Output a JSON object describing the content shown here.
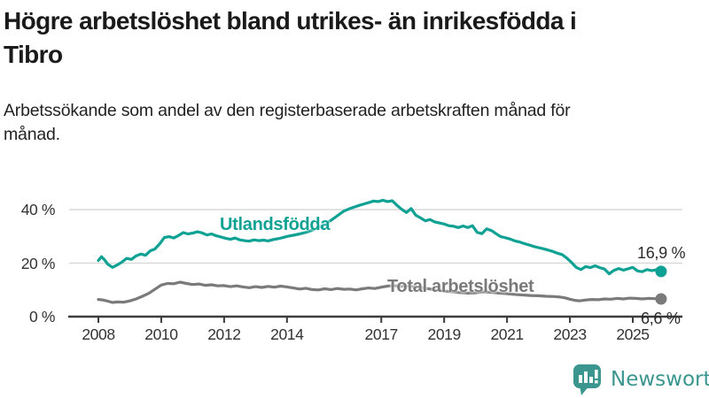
{
  "header": {
    "title": "Högre arbetslöshet bland utrikes- än inrikesfödda i Tibro",
    "subtitle": "Arbetssökande som andel av den registerbaserade arbetskraften månad för månad."
  },
  "footer": {
    "brand": "Newsworthy"
  },
  "colors": {
    "accent_teal": "#0fa294",
    "line_gray": "#7a7a7a",
    "grid": "#d9d9d9",
    "axis": "#3c3c3c",
    "value_label_text": "#2b2b2b",
    "logo_teal": "#3a968e"
  },
  "chart_data": {
    "type": "line",
    "title": "Högre arbetslöshet bland utrikes- än inrikesfödda i Tibro",
    "subtitle": "Arbetssökande som andel av den registerbaserade arbetskraften månad för månad.",
    "xlabel": "",
    "ylabel": "",
    "unit": "%",
    "grid": "horizontal",
    "legend_position": "inline-labels",
    "xlim": [
      2007.1,
      2026.6
    ],
    "ylim": [
      0,
      45
    ],
    "x_ticks": [
      {
        "value": 2008,
        "label": "2008"
      },
      {
        "value": 2010,
        "label": "2010"
      },
      {
        "value": 2012,
        "label": "2012"
      },
      {
        "value": 2014,
        "label": "2014"
      },
      {
        "value": 2017,
        "label": "2017"
      },
      {
        "value": 2019,
        "label": "2019"
      },
      {
        "value": 2021,
        "label": "2021"
      },
      {
        "value": 2023,
        "label": "2023"
      },
      {
        "value": 2025,
        "label": "2025"
      }
    ],
    "y_ticks": [
      {
        "value": 0,
        "label": "0 %"
      },
      {
        "value": 20,
        "label": "20 %"
      },
      {
        "value": 40,
        "label": "40 %"
      }
    ],
    "series": [
      {
        "name": "Utlandsfödda",
        "color": "#0fa294",
        "end_value": 16.9,
        "end_value_label": "16,9 %",
        "points": [
          [
            2008.0,
            21.0
          ],
          [
            2008.1,
            22.4
          ],
          [
            2008.2,
            21.2
          ],
          [
            2008.3,
            19.6
          ],
          [
            2008.45,
            18.4
          ],
          [
            2008.6,
            19.3
          ],
          [
            2008.75,
            20.4
          ],
          [
            2008.9,
            21.8
          ],
          [
            2009.05,
            21.4
          ],
          [
            2009.2,
            22.7
          ],
          [
            2009.35,
            23.4
          ],
          [
            2009.5,
            22.9
          ],
          [
            2009.65,
            24.6
          ],
          [
            2009.8,
            25.3
          ],
          [
            2009.95,
            27.2
          ],
          [
            2010.1,
            29.6
          ],
          [
            2010.25,
            29.9
          ],
          [
            2010.4,
            29.4
          ],
          [
            2010.55,
            30.3
          ],
          [
            2010.7,
            31.4
          ],
          [
            2010.85,
            30.9
          ],
          [
            2011.0,
            31.2
          ],
          [
            2011.15,
            31.7
          ],
          [
            2011.3,
            31.3
          ],
          [
            2011.45,
            30.5
          ],
          [
            2011.6,
            30.9
          ],
          [
            2011.75,
            30.2
          ],
          [
            2011.9,
            29.8
          ],
          [
            2012.05,
            29.3
          ],
          [
            2012.2,
            28.9
          ],
          [
            2012.35,
            29.4
          ],
          [
            2012.5,
            28.7
          ],
          [
            2012.65,
            28.4
          ],
          [
            2012.8,
            28.2
          ],
          [
            2012.95,
            28.7
          ],
          [
            2013.1,
            28.4
          ],
          [
            2013.25,
            28.6
          ],
          [
            2013.4,
            28.3
          ],
          [
            2013.55,
            28.8
          ],
          [
            2013.7,
            29.1
          ],
          [
            2013.85,
            29.5
          ],
          [
            2014.0,
            30.0
          ],
          [
            2014.2,
            30.4
          ],
          [
            2014.4,
            30.9
          ],
          [
            2014.6,
            31.5
          ],
          [
            2014.8,
            32.3
          ],
          [
            2015.0,
            33.3
          ],
          [
            2015.2,
            34.6
          ],
          [
            2015.4,
            36.0
          ],
          [
            2015.6,
            37.7
          ],
          [
            2015.8,
            39.4
          ],
          [
            2016.0,
            40.4
          ],
          [
            2016.15,
            41.0
          ],
          [
            2016.3,
            41.6
          ],
          [
            2016.45,
            42.1
          ],
          [
            2016.6,
            42.6
          ],
          [
            2016.75,
            43.2
          ],
          [
            2016.9,
            43.0
          ],
          [
            2017.05,
            43.5
          ],
          [
            2017.2,
            43.0
          ],
          [
            2017.35,
            43.3
          ],
          [
            2017.5,
            41.6
          ],
          [
            2017.65,
            40.1
          ],
          [
            2017.8,
            38.9
          ],
          [
            2017.95,
            40.4
          ],
          [
            2018.1,
            37.9
          ],
          [
            2018.25,
            36.9
          ],
          [
            2018.4,
            35.8
          ],
          [
            2018.55,
            36.3
          ],
          [
            2018.7,
            35.4
          ],
          [
            2018.85,
            35.0
          ],
          [
            2019.0,
            34.6
          ],
          [
            2019.15,
            34.0
          ],
          [
            2019.3,
            33.8
          ],
          [
            2019.45,
            33.3
          ],
          [
            2019.6,
            33.9
          ],
          [
            2019.75,
            33.3
          ],
          [
            2019.9,
            34.0
          ],
          [
            2020.05,
            31.5
          ],
          [
            2020.2,
            31.0
          ],
          [
            2020.35,
            32.8
          ],
          [
            2020.5,
            32.2
          ],
          [
            2020.65,
            31.0
          ],
          [
            2020.8,
            29.9
          ],
          [
            2020.95,
            29.5
          ],
          [
            2021.1,
            29.0
          ],
          [
            2021.25,
            28.3
          ],
          [
            2021.4,
            27.9
          ],
          [
            2021.55,
            27.3
          ],
          [
            2021.7,
            26.8
          ],
          [
            2021.85,
            26.2
          ],
          [
            2022.0,
            25.8
          ],
          [
            2022.15,
            25.4
          ],
          [
            2022.3,
            24.9
          ],
          [
            2022.45,
            24.4
          ],
          [
            2022.6,
            23.7
          ],
          [
            2022.75,
            23.2
          ],
          [
            2022.9,
            21.9
          ],
          [
            2023.05,
            20.3
          ],
          [
            2023.2,
            18.4
          ],
          [
            2023.35,
            17.6
          ],
          [
            2023.5,
            18.7
          ],
          [
            2023.65,
            18.3
          ],
          [
            2023.8,
            19.0
          ],
          [
            2023.95,
            18.3
          ],
          [
            2024.1,
            17.8
          ],
          [
            2024.25,
            16.0
          ],
          [
            2024.4,
            17.3
          ],
          [
            2024.55,
            18.0
          ],
          [
            2024.7,
            17.4
          ],
          [
            2024.85,
            17.9
          ],
          [
            2025.0,
            18.4
          ],
          [
            2025.15,
            17.1
          ],
          [
            2025.3,
            16.8
          ],
          [
            2025.45,
            17.6
          ],
          [
            2025.6,
            17.2
          ],
          [
            2025.75,
            17.5
          ],
          [
            2025.9,
            16.9
          ]
        ]
      },
      {
        "name": "Total arbetslöshet",
        "color": "#7a7a7a",
        "end_value": 6.6,
        "end_value_label": "6,6 %",
        "points": [
          [
            2008.0,
            6.4
          ],
          [
            2008.15,
            6.2
          ],
          [
            2008.3,
            5.8
          ],
          [
            2008.45,
            5.3
          ],
          [
            2008.6,
            5.5
          ],
          [
            2008.8,
            5.4
          ],
          [
            2009.0,
            5.9
          ],
          [
            2009.2,
            6.6
          ],
          [
            2009.4,
            7.6
          ],
          [
            2009.6,
            8.7
          ],
          [
            2009.8,
            10.2
          ],
          [
            2010.0,
            11.8
          ],
          [
            2010.2,
            12.4
          ],
          [
            2010.4,
            12.3
          ],
          [
            2010.6,
            12.9
          ],
          [
            2010.8,
            12.4
          ],
          [
            2011.0,
            12.0
          ],
          [
            2011.2,
            12.2
          ],
          [
            2011.4,
            11.7
          ],
          [
            2011.6,
            11.9
          ],
          [
            2011.8,
            11.5
          ],
          [
            2012.0,
            11.6
          ],
          [
            2012.2,
            11.2
          ],
          [
            2012.4,
            11.5
          ],
          [
            2012.6,
            11.1
          ],
          [
            2012.8,
            10.8
          ],
          [
            2013.0,
            11.2
          ],
          [
            2013.2,
            10.9
          ],
          [
            2013.4,
            11.3
          ],
          [
            2013.6,
            11.0
          ],
          [
            2013.8,
            11.4
          ],
          [
            2014.0,
            11.1
          ],
          [
            2014.2,
            10.7
          ],
          [
            2014.4,
            10.3
          ],
          [
            2014.6,
            10.6
          ],
          [
            2014.8,
            10.1
          ],
          [
            2015.0,
            10.0
          ],
          [
            2015.2,
            10.4
          ],
          [
            2015.4,
            10.1
          ],
          [
            2015.6,
            10.5
          ],
          [
            2015.8,
            10.2
          ],
          [
            2016.0,
            10.3
          ],
          [
            2016.2,
            10.0
          ],
          [
            2016.4,
            10.4
          ],
          [
            2016.6,
            10.7
          ],
          [
            2016.8,
            10.5
          ],
          [
            2017.0,
            11.0
          ],
          [
            2017.2,
            11.4
          ],
          [
            2017.4,
            11.6
          ],
          [
            2017.6,
            11.3
          ],
          [
            2017.8,
            11.5
          ],
          [
            2018.0,
            11.2
          ],
          [
            2018.25,
            10.8
          ],
          [
            2018.5,
            10.4
          ],
          [
            2018.75,
            10.0
          ],
          [
            2019.0,
            9.6
          ],
          [
            2019.25,
            9.3
          ],
          [
            2019.5,
            9.0
          ],
          [
            2019.75,
            8.8
          ],
          [
            2020.0,
            8.9
          ],
          [
            2020.25,
            9.3
          ],
          [
            2020.5,
            9.1
          ],
          [
            2020.75,
            8.8
          ],
          [
            2021.0,
            8.6
          ],
          [
            2021.25,
            8.3
          ],
          [
            2021.5,
            8.1
          ],
          [
            2021.75,
            7.9
          ],
          [
            2022.0,
            7.8
          ],
          [
            2022.25,
            7.6
          ],
          [
            2022.5,
            7.5
          ],
          [
            2022.7,
            7.3
          ],
          [
            2022.85,
            7.0
          ],
          [
            2023.0,
            6.5
          ],
          [
            2023.15,
            6.1
          ],
          [
            2023.3,
            5.9
          ],
          [
            2023.5,
            6.2
          ],
          [
            2023.7,
            6.4
          ],
          [
            2023.9,
            6.3
          ],
          [
            2024.1,
            6.6
          ],
          [
            2024.3,
            6.5
          ],
          [
            2024.5,
            6.8
          ],
          [
            2024.7,
            6.6
          ],
          [
            2024.9,
            6.9
          ],
          [
            2025.1,
            6.8
          ],
          [
            2025.3,
            6.6
          ],
          [
            2025.5,
            6.8
          ],
          [
            2025.7,
            6.7
          ],
          [
            2025.9,
            6.6
          ]
        ]
      }
    ]
  }
}
